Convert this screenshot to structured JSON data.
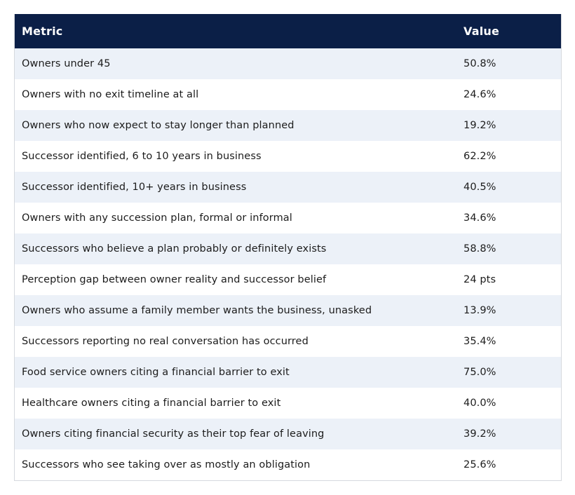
{
  "table": {
    "headers": [
      "Metric",
      "Value"
    ],
    "rows": [
      {
        "metric": "Owners under 45",
        "value": "50.8%"
      },
      {
        "metric": "Owners with no exit timeline at all",
        "value": "24.6%"
      },
      {
        "metric": "Owners who now expect to stay longer than planned",
        "value": "19.2%"
      },
      {
        "metric": "Successor identified, 6 to 10 years in business",
        "value": "62.2%"
      },
      {
        "metric": "Successor identified, 10+ years in business",
        "value": "40.5%"
      },
      {
        "metric": "Owners with any succession plan, formal or informal",
        "value": "34.6%"
      },
      {
        "metric": "Successors who believe a plan probably or definitely exists",
        "value": "58.8%"
      },
      {
        "metric": "Perception gap between owner reality and successor belief",
        "value": "24 pts"
      },
      {
        "metric": "Owners who assume a family member wants the business, unasked",
        "value": "13.9%"
      },
      {
        "metric": "Successors reporting no real conversation has occurred",
        "value": "35.4%"
      },
      {
        "metric": "Food service owners citing a financial barrier to exit",
        "value": "75.0%"
      },
      {
        "metric": "Healthcare owners citing a financial barrier to exit",
        "value": "40.0%"
      },
      {
        "metric": "Owners citing financial security as their top fear of leaving",
        "value": "39.2%"
      },
      {
        "metric": "Successors who see taking over as mostly an obligation",
        "value": "25.6%"
      }
    ]
  },
  "colors": {
    "header_bg": "#0b1f47",
    "header_text": "#ffffff",
    "row_alt_bg": "#ecf1f8",
    "row_bg": "#ffffff"
  }
}
